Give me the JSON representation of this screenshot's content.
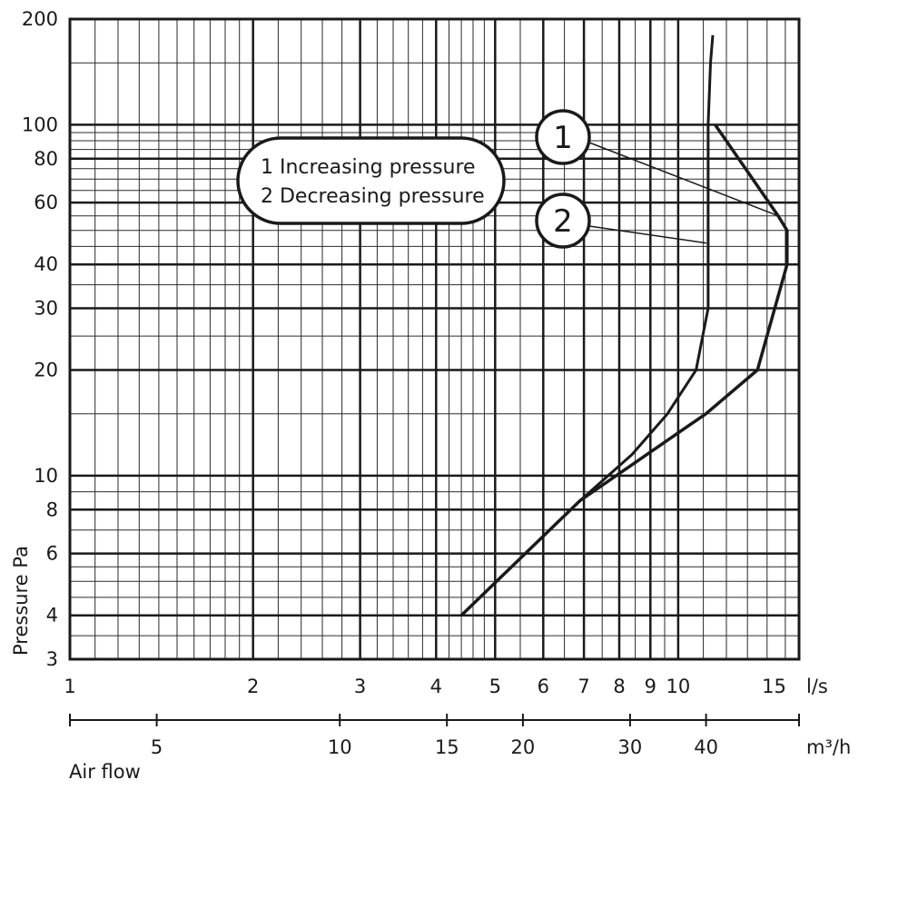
{
  "chart_data": {
    "type": "line",
    "x_scale": "log",
    "y_scale": "log",
    "x_unit": "l/s",
    "x2_unit": "m³/h",
    "xlabel": "Air flow",
    "ylabel": "Pressure  Pa",
    "xlim": [
      1,
      15.8
    ],
    "ylim": [
      3,
      200
    ],
    "x_ticks": [
      {
        "value": 1,
        "label": "1"
      },
      {
        "value": 2,
        "label": "2"
      },
      {
        "value": 3,
        "label": "3"
      },
      {
        "value": 4,
        "label": "4"
      },
      {
        "value": 5,
        "label": "5"
      },
      {
        "value": 6,
        "label": "6"
      },
      {
        "value": 7,
        "label": "7"
      },
      {
        "value": 8,
        "label": "8"
      },
      {
        "value": 9,
        "label": "9"
      },
      {
        "value": 10,
        "label": "10"
      },
      {
        "value": 15,
        "label": "15"
      }
    ],
    "x2_ticks": [
      {
        "value": 5,
        "label": "5"
      },
      {
        "value": 10,
        "label": "10"
      },
      {
        "value": 15,
        "label": "15"
      },
      {
        "value": 20,
        "label": "20"
      },
      {
        "value": 30,
        "label": "30"
      },
      {
        "value": 40,
        "label": "40"
      }
    ],
    "y_ticks": [
      {
        "value": 3,
        "label": "3"
      },
      {
        "value": 4,
        "label": "4"
      },
      {
        "value": 6,
        "label": "6"
      },
      {
        "value": 8,
        "label": "8"
      },
      {
        "value": 10,
        "label": "10"
      },
      {
        "value": 20,
        "label": "20"
      },
      {
        "value": 30,
        "label": "30"
      },
      {
        "value": 40,
        "label": "40"
      },
      {
        "value": 60,
        "label": "60"
      },
      {
        "value": 80,
        "label": "80"
      },
      {
        "value": 100,
        "label": "100"
      },
      {
        "value": 200,
        "label": "200"
      }
    ],
    "series": [
      {
        "name": "1 Increasing pressure",
        "marker": "1",
        "x": [
          4.4,
          6.9,
          11.1,
          13.5,
          15.1,
          15.1,
          14.6,
          11.5
        ],
        "y": [
          4,
          8.5,
          15,
          20,
          40,
          50,
          55,
          100
        ]
      },
      {
        "name": "2 Decreasing pressure",
        "marker": "2",
        "x": [
          11.4,
          11.3,
          11.2,
          11.2,
          10.7,
          9.6,
          8.4,
          6.9,
          4.4
        ],
        "y": [
          180,
          150,
          100,
          30,
          20,
          15,
          11.5,
          8.5,
          4
        ]
      }
    ],
    "grid": true,
    "legend": "top-left, inside plot"
  },
  "legend": {
    "items": [
      "1 Increasing pressure",
      "2 Decreasing pressure"
    ]
  },
  "callouts": [
    "1",
    "2"
  ]
}
